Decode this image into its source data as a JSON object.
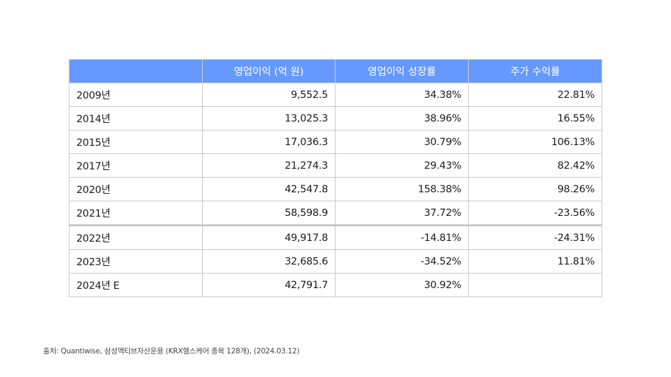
{
  "table": {
    "headers": [
      "",
      "영업이익 (억 원)",
      "영업이익 성장률",
      "주가 수익률"
    ],
    "rows": [
      {
        "year": "2009년",
        "op_income": "9,552.5",
        "growth": "34.38%",
        "return": "22.81%"
      },
      {
        "year": "2014년",
        "op_income": "13,025.3",
        "growth": "38.96%",
        "return": "16.55%"
      },
      {
        "year": "2015년",
        "op_income": "17,036.3",
        "growth": "30.79%",
        "return": "106.13%"
      },
      {
        "year": "2017년",
        "op_income": "21,274.3",
        "growth": "29.43%",
        "return": "82.42%"
      },
      {
        "year": "2020년",
        "op_income": "42,547.8",
        "growth": "158.38%",
        "return": "98.26%"
      },
      {
        "year": "2021년",
        "op_income": "58,598.9",
        "growth": "37.72%",
        "return": "-23.56%"
      },
      {
        "year": "2022년",
        "op_income": "49,917.8",
        "growth": "-14.81%",
        "return": "-24.31%"
      },
      {
        "year": "2023년",
        "op_income": "32,685.6",
        "growth": "-34.52%",
        "return": "11.81%"
      },
      {
        "year": "2024년 E",
        "op_income": "42,791.7",
        "growth": "30.92%",
        "return": ""
      }
    ]
  },
  "footnote": "출처: Quantiwise, 삼성액티브자산운용 (KRX헬스케어 종목 128개), (2024.03.12)",
  "colors": {
    "header_bg": "#6699ff",
    "header_text": "#ffffff",
    "border": "#c8c8c8"
  }
}
